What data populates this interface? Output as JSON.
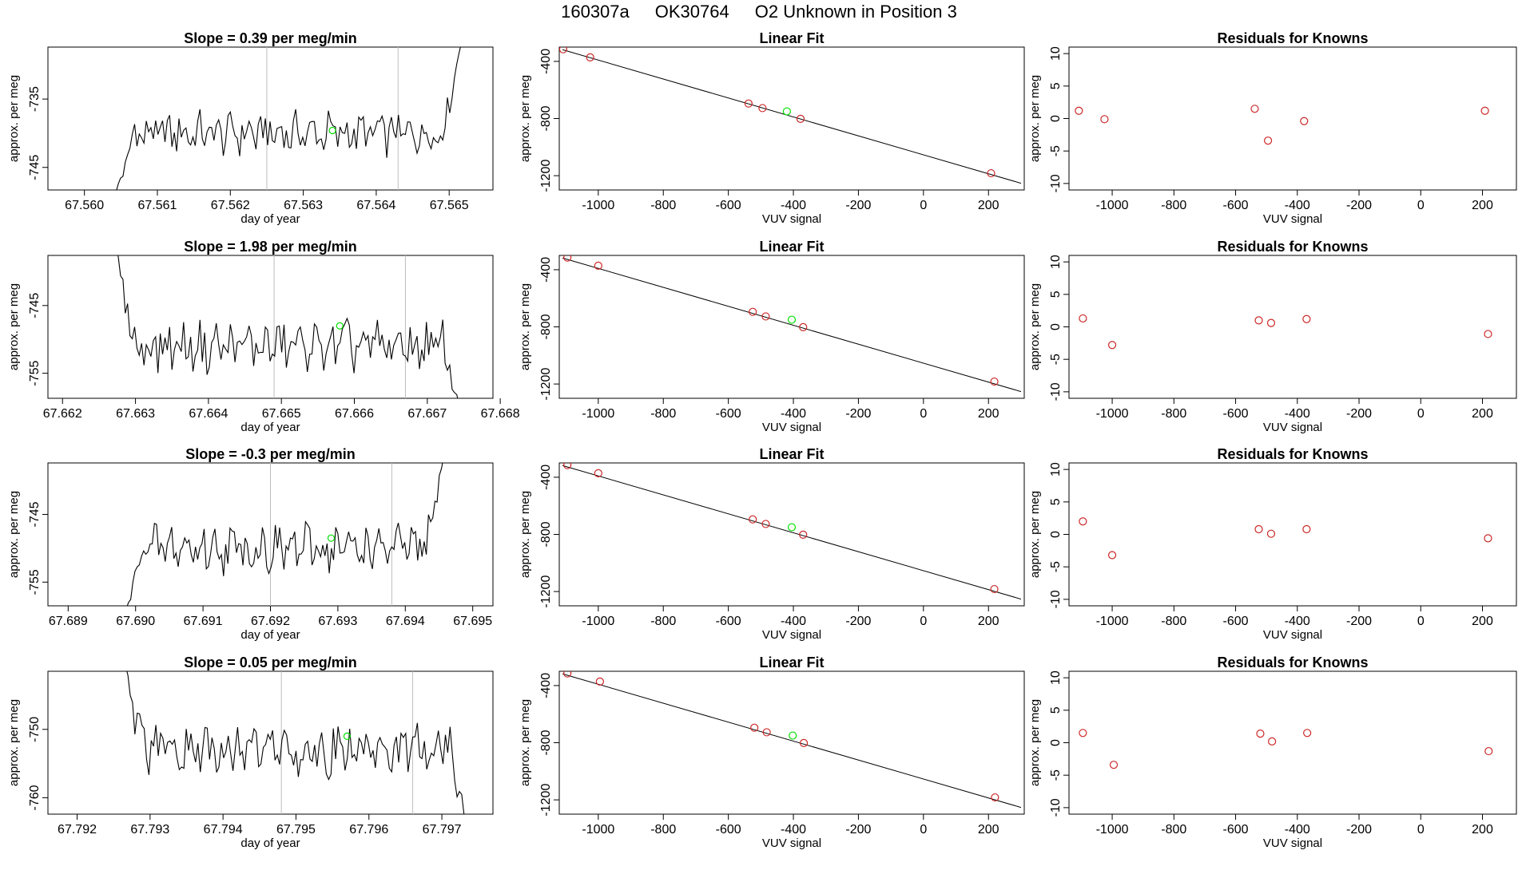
{
  "header": {
    "run_id": "160307a",
    "tank_id": "OK30764",
    "description": "O2 Unknown in Position  3"
  },
  "colors": {
    "line": "#000000",
    "known_points": "#cd2626",
    "unknown_point": "#00e000",
    "vertical_markers": "#bebebe"
  },
  "chart_data": [
    {
      "type": "line",
      "panel": "timeseries",
      "row": 1,
      "title": "Slope =  0.39  per meg/min",
      "xlabel": "day of year",
      "ylabel": "approx. per meg",
      "xlim": [
        67.5595,
        67.5656
      ],
      "ylim": [
        -748.3,
        -727.4
      ],
      "xticks": [
        67.56,
        67.561,
        67.562,
        67.563,
        67.564,
        67.565
      ],
      "xtick_labels": [
        "67.560",
        "67.561",
        "67.562",
        "67.563",
        "67.564",
        "67.565"
      ],
      "yticks": [
        -735,
        -745
      ],
      "ytick_labels": [
        "-735",
        "-745"
      ],
      "series_start": 67.5604,
      "series_end": 67.5652,
      "series_base": -740.0,
      "series_amp": 2.5,
      "series_start_value": -750.0,
      "series_end_value": -725.0,
      "vlines": [
        67.5625,
        67.5643
      ],
      "unknown_point": {
        "x": 67.5634,
        "y": -739.6
      }
    },
    {
      "type": "scatter",
      "panel": "linear_fit",
      "row": 1,
      "title": "Linear Fit",
      "xlabel": "VUV signal",
      "ylabel": "approx. per meg",
      "xlim": [
        -1120,
        310
      ],
      "ylim": [
        -1300,
        -300
      ],
      "xticks": [
        -1000,
        -800,
        -600,
        -400,
        -200,
        0,
        200
      ],
      "xtick_labels": [
        "-1000",
        "-800",
        "-600",
        "-400",
        "-200",
        "0",
        "200"
      ],
      "yticks": [
        -400,
        -800,
        -1200
      ],
      "ytick_labels": [
        "-400",
        "-800",
        "-1200"
      ],
      "fit_line": [
        [
          -1110,
          -318
        ],
        [
          300,
          -1253
        ]
      ],
      "known_points": [
        [
          -1108,
          -315
        ],
        [
          -1025,
          -372
        ],
        [
          -538,
          -695
        ],
        [
          -495,
          -727
        ],
        [
          -378,
          -802
        ],
        [
          208,
          -1183
        ]
      ],
      "unknown_point": [
        -420,
        -750
      ]
    },
    {
      "type": "scatter",
      "panel": "residuals",
      "row": 1,
      "title": "Residuals for Knowns",
      "xlabel": "VUV signal",
      "ylabel": "approx. per meg",
      "xlim": [
        -1140,
        310
      ],
      "ylim": [
        -11,
        11
      ],
      "xticks": [
        -1000,
        -800,
        -600,
        -400,
        -200,
        0,
        200
      ],
      "xtick_labels": [
        "-1000",
        "-800",
        "-600",
        "-400",
        "-200",
        "0",
        "200"
      ],
      "yticks": [
        10,
        5,
        0,
        -5,
        -10
      ],
      "ytick_labels": [
        "10",
        "5",
        "0",
        "-5",
        "-10"
      ],
      "points": [
        [
          -1108,
          1.2
        ],
        [
          -1025,
          -0.1
        ],
        [
          -538,
          1.5
        ],
        [
          -495,
          -3.4
        ],
        [
          -378,
          -0.4
        ],
        [
          208,
          1.2
        ]
      ]
    },
    {
      "type": "line",
      "panel": "timeseries",
      "row": 2,
      "title": "Slope =  1.98  per meg/min",
      "xlabel": "day of year",
      "ylabel": "approx. per meg",
      "xlim": [
        67.6618,
        67.6679
      ],
      "ylim": [
        -758.7,
        -737.6
      ],
      "xticks": [
        67.662,
        67.663,
        67.664,
        67.665,
        67.666,
        67.667,
        67.668
      ],
      "xtick_labels": [
        "67.662",
        "67.663",
        "67.664",
        "67.665",
        "67.666",
        "67.667",
        "67.668"
      ],
      "yticks": [
        -745,
        -755
      ],
      "ytick_labels": [
        "-745",
        "-755"
      ],
      "series_start": 67.6627,
      "series_end": 67.6675,
      "series_base": -751.0,
      "series_amp": 3.0,
      "series_start_value": -735.0,
      "series_end_value": -762.0,
      "vlines": [
        67.6649,
        67.6667
      ],
      "unknown_point": {
        "x": 67.6658,
        "y": -748.0
      }
    },
    {
      "type": "scatter",
      "panel": "linear_fit",
      "row": 2,
      "title": "Linear Fit",
      "xlabel": "VUV signal",
      "ylabel": "approx. per meg",
      "xlim": [
        -1120,
        310
      ],
      "ylim": [
        -1300,
        -300
      ],
      "xticks": [
        -1000,
        -800,
        -600,
        -400,
        -200,
        0,
        200
      ],
      "xtick_labels": [
        "-1000",
        "-800",
        "-600",
        "-400",
        "-200",
        "0",
        "200"
      ],
      "yticks": [
        -400,
        -800,
        -1200
      ],
      "ytick_labels": [
        "-400",
        "-800",
        "-1200"
      ],
      "fit_line": [
        [
          -1110,
          -318
        ],
        [
          300,
          -1253
        ]
      ],
      "known_points": [
        [
          -1095,
          -315
        ],
        [
          -1000,
          -372
        ],
        [
          -525,
          -695
        ],
        [
          -485,
          -727
        ],
        [
          -370,
          -802
        ],
        [
          218,
          -1183
        ]
      ],
      "unknown_point": [
        -405,
        -750
      ]
    },
    {
      "type": "scatter",
      "panel": "residuals",
      "row": 2,
      "title": "Residuals for Knowns",
      "xlabel": "VUV signal",
      "ylabel": "approx. per meg",
      "xlim": [
        -1140,
        310
      ],
      "ylim": [
        -11,
        11
      ],
      "xticks": [
        -1000,
        -800,
        -600,
        -400,
        -200,
        0,
        200
      ],
      "xtick_labels": [
        "-1000",
        "-800",
        "-600",
        "-400",
        "-200",
        "0",
        "200"
      ],
      "yticks": [
        10,
        5,
        0,
        -5,
        -10
      ],
      "ytick_labels": [
        "10",
        "5",
        "0",
        "-5",
        "-10"
      ],
      "points": [
        [
          -1095,
          1.3
        ],
        [
          -1000,
          -2.8
        ],
        [
          -525,
          1.0
        ],
        [
          -485,
          0.6
        ],
        [
          -370,
          1.2
        ],
        [
          218,
          -1.1
        ]
      ]
    },
    {
      "type": "line",
      "panel": "timeseries",
      "row": 3,
      "title": "Slope =  -0.3  per meg/min",
      "xlabel": "day of year",
      "ylabel": "approx. per meg",
      "xlim": [
        67.6887,
        67.6953
      ],
      "ylim": [
        -758.5,
        -737.4
      ],
      "xticks": [
        67.689,
        67.69,
        67.691,
        67.692,
        67.693,
        67.694,
        67.695
      ],
      "xtick_labels": [
        "67.689",
        "67.690",
        "67.691",
        "67.692",
        "67.693",
        "67.694",
        "67.695"
      ],
      "yticks": [
        -745,
        -755
      ],
      "ytick_labels": [
        "-745",
        "-755"
      ],
      "series_start": 67.6898,
      "series_end": 67.6946,
      "series_base": -750.0,
      "series_amp": 2.8,
      "series_start_value": -762.0,
      "series_end_value": -735.0,
      "vlines": [
        67.692,
        67.6938
      ],
      "unknown_point": {
        "x": 67.6929,
        "y": -748.5
      }
    },
    {
      "type": "scatter",
      "panel": "linear_fit",
      "row": 3,
      "title": "Linear Fit",
      "xlabel": "VUV signal",
      "ylabel": "approx. per meg",
      "xlim": [
        -1120,
        310
      ],
      "ylim": [
        -1300,
        -300
      ],
      "xticks": [
        -1000,
        -800,
        -600,
        -400,
        -200,
        0,
        200
      ],
      "xtick_labels": [
        "-1000",
        "-800",
        "-600",
        "-400",
        "-200",
        "0",
        "200"
      ],
      "yticks": [
        -400,
        -800,
        -1200
      ],
      "ytick_labels": [
        "-400",
        "-800",
        "-1200"
      ],
      "fit_line": [
        [
          -1110,
          -318
        ],
        [
          300,
          -1253
        ]
      ],
      "known_points": [
        [
          -1095,
          -315
        ],
        [
          -1000,
          -372
        ],
        [
          -525,
          -695
        ],
        [
          -485,
          -727
        ],
        [
          -370,
          -802
        ],
        [
          218,
          -1183
        ]
      ],
      "unknown_point": [
        -405,
        -750
      ]
    },
    {
      "type": "scatter",
      "panel": "residuals",
      "row": 3,
      "title": "Residuals for Knowns",
      "xlabel": "VUV signal",
      "ylabel": "approx. per meg",
      "xlim": [
        -1140,
        310
      ],
      "ylim": [
        -11,
        11
      ],
      "xticks": [
        -1000,
        -800,
        -600,
        -400,
        -200,
        0,
        200
      ],
      "xtick_labels": [
        "-1000",
        "-800",
        "-600",
        "-400",
        "-200",
        "0",
        "200"
      ],
      "yticks": [
        10,
        5,
        0,
        -5,
        -10
      ],
      "ytick_labels": [
        "10",
        "5",
        "0",
        "-5",
        "-10"
      ],
      "points": [
        [
          -1095,
          2.0
        ],
        [
          -1000,
          -3.2
        ],
        [
          -525,
          0.8
        ],
        [
          -485,
          0.1
        ],
        [
          -370,
          0.8
        ],
        [
          218,
          -0.6
        ]
      ]
    },
    {
      "type": "line",
      "panel": "timeseries",
      "row": 4,
      "title": "Slope =  0.05  per meg/min",
      "xlabel": "day of year",
      "ylabel": "approx. per meg",
      "xlim": [
        67.7916,
        67.7977
      ],
      "ylim": [
        -762.4,
        -741.5
      ],
      "xticks": [
        67.792,
        67.793,
        67.794,
        67.795,
        67.796,
        67.797
      ],
      "xtick_labels": [
        "67.792",
        "67.793",
        "67.794",
        "67.795",
        "67.796",
        "67.797"
      ],
      "yticks": [
        -750,
        -760
      ],
      "ytick_labels": [
        "-750",
        "-760"
      ],
      "series_start": 67.7926,
      "series_end": 67.7974,
      "series_base": -753.0,
      "series_amp": 3.0,
      "series_start_value": -738.0,
      "series_end_value": -766.0,
      "vlines": [
        67.7948,
        67.7966
      ],
      "unknown_point": {
        "x": 67.7957,
        "y": -751.0
      }
    },
    {
      "type": "scatter",
      "panel": "linear_fit",
      "row": 4,
      "title": "Linear Fit",
      "xlabel": "VUV signal",
      "ylabel": "approx. per meg",
      "xlim": [
        -1120,
        310
      ],
      "ylim": [
        -1300,
        -300
      ],
      "xticks": [
        -1000,
        -800,
        -600,
        -400,
        -200,
        0,
        200
      ],
      "xtick_labels": [
        "-1000",
        "-800",
        "-600",
        "-400",
        "-200",
        "0",
        "200"
      ],
      "yticks": [
        -400,
        -800,
        -1200
      ],
      "ytick_labels": [
        "-400",
        "-800",
        "-1200"
      ],
      "fit_line": [
        [
          -1110,
          -318
        ],
        [
          300,
          -1253
        ]
      ],
      "known_points": [
        [
          -1095,
          -315
        ],
        [
          -995,
          -372
        ],
        [
          -520,
          -695
        ],
        [
          -482,
          -727
        ],
        [
          -368,
          -802
        ],
        [
          220,
          -1183
        ]
      ],
      "unknown_point": [
        -402,
        -750
      ]
    },
    {
      "type": "scatter",
      "panel": "residuals",
      "row": 4,
      "title": "Residuals for Knowns",
      "xlabel": "VUV signal",
      "ylabel": "approx. per meg",
      "xlim": [
        -1140,
        310
      ],
      "ylim": [
        -11,
        11
      ],
      "xticks": [
        -1000,
        -800,
        -600,
        -400,
        -200,
        0,
        200
      ],
      "xtick_labels": [
        "-1000",
        "-800",
        "-600",
        "-400",
        "-200",
        "0",
        "200"
      ],
      "yticks": [
        10,
        5,
        0,
        -5,
        -10
      ],
      "ytick_labels": [
        "10",
        "5",
        "0",
        "-5",
        "-10"
      ],
      "points": [
        [
          -1095,
          1.5
        ],
        [
          -995,
          -3.4
        ],
        [
          -520,
          1.4
        ],
        [
          -482,
          0.2
        ],
        [
          -368,
          1.5
        ],
        [
          220,
          -1.3
        ]
      ]
    }
  ]
}
